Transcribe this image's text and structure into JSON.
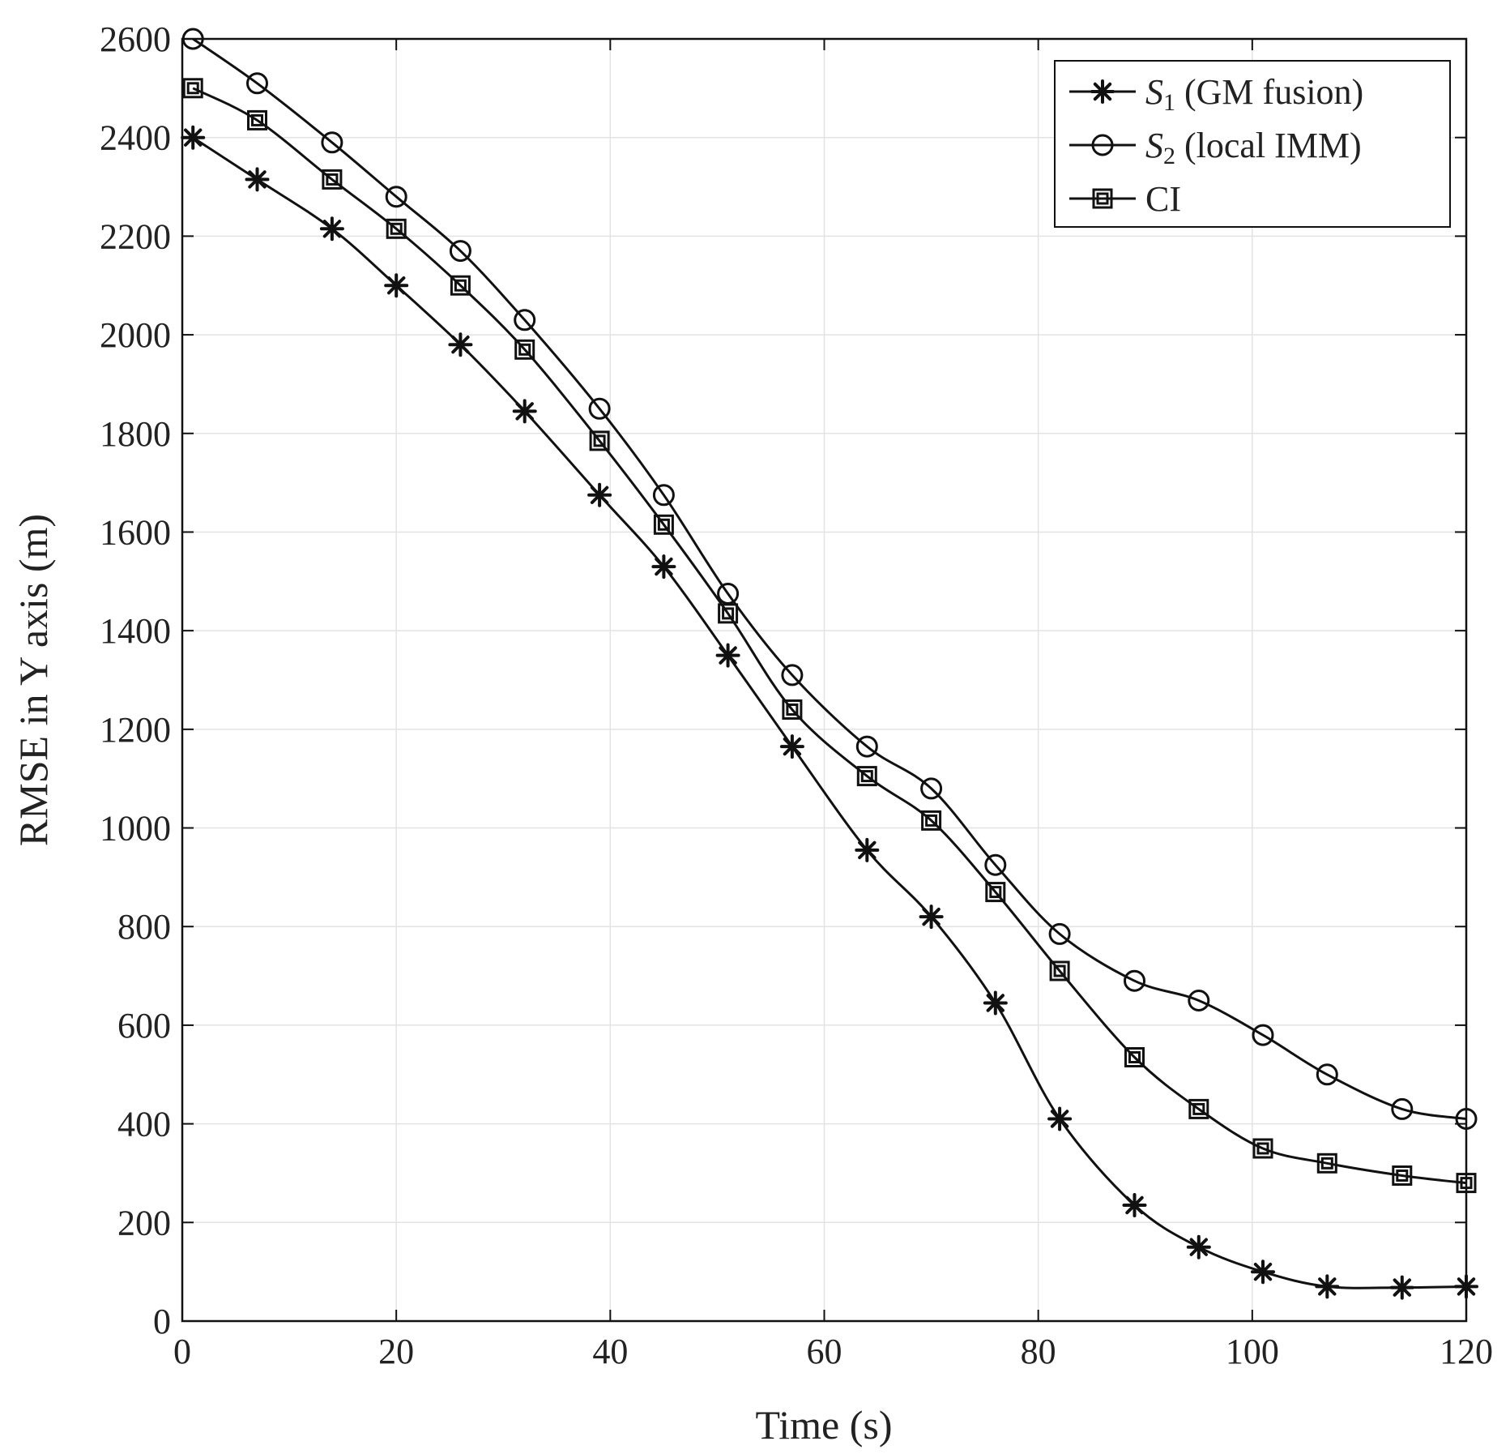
{
  "chart_data": {
    "type": "line",
    "title": "",
    "xlabel": "Time (s)",
    "ylabel": "RMSE in Y axis (m)",
    "xlim": [
      0,
      120
    ],
    "ylim": [
      0,
      2600
    ],
    "xticks": [
      0,
      20,
      40,
      60,
      80,
      100,
      120
    ],
    "yticks": [
      0,
      200,
      400,
      600,
      800,
      1000,
      1200,
      1400,
      1600,
      1800,
      2000,
      2200,
      2400,
      2600
    ],
    "grid": true,
    "legend_position": "top-right",
    "series": [
      {
        "name": "S1 (GM fusion)",
        "legend_main": "S",
        "legend_sub": "1",
        "legend_rest": " (GM fusion)",
        "marker": "asterisk",
        "x": [
          1,
          7,
          14,
          20,
          26,
          32,
          39,
          45,
          51,
          57,
          64,
          70,
          76,
          82,
          89,
          95,
          101,
          107,
          114,
          120
        ],
        "y": [
          2400,
          2315,
          2215,
          2100,
          1980,
          1845,
          1675,
          1530,
          1350,
          1165,
          955,
          820,
          645,
          410,
          235,
          150,
          100,
          70,
          68,
          70
        ]
      },
      {
        "name": "S2 (local IMM)",
        "legend_main": "S",
        "legend_sub": "2",
        "legend_rest": " (local IMM)",
        "marker": "circle",
        "x": [
          1,
          7,
          14,
          20,
          26,
          32,
          39,
          45,
          51,
          57,
          64,
          70,
          76,
          82,
          89,
          95,
          101,
          107,
          114,
          120
        ],
        "y": [
          2600,
          2510,
          2390,
          2280,
          2170,
          2030,
          1850,
          1675,
          1475,
          1310,
          1165,
          1080,
          925,
          785,
          690,
          650,
          580,
          500,
          430,
          410
        ]
      },
      {
        "name": "CI",
        "legend_main": "CI",
        "legend_sub": "",
        "legend_rest": "",
        "marker": "square",
        "x": [
          1,
          7,
          14,
          20,
          26,
          32,
          39,
          45,
          51,
          57,
          64,
          70,
          76,
          82,
          89,
          95,
          101,
          107,
          114,
          120
        ],
        "y": [
          2500,
          2435,
          2315,
          2215,
          2100,
          1970,
          1785,
          1615,
          1435,
          1240,
          1105,
          1015,
          870,
          710,
          535,
          430,
          350,
          320,
          295,
          280
        ]
      }
    ]
  }
}
